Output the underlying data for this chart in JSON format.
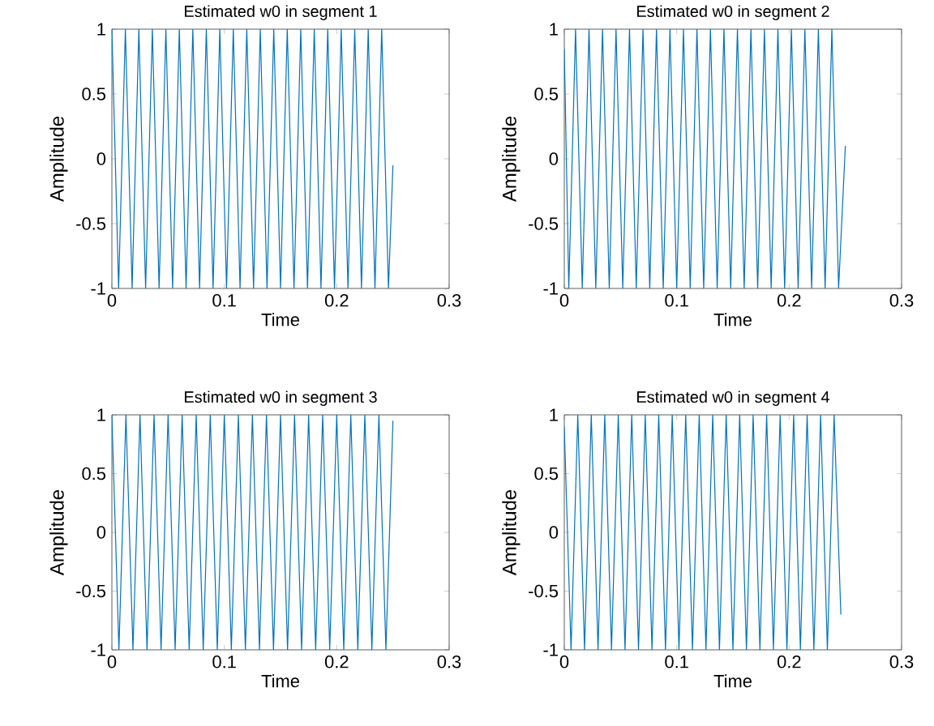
{
  "chart_data": [
    {
      "type": "line",
      "title": "Estimated w0 in segment 1",
      "xlabel": "Time",
      "ylabel": "Amplitude",
      "xlim": [
        0,
        0.3
      ],
      "ylim": [
        -1,
        1
      ],
      "xticks": [
        0,
        0.1,
        0.2,
        0.3
      ],
      "yticks": [
        -1,
        -0.5,
        0,
        0.5,
        1
      ],
      "grid": false,
      "marker": "none",
      "line_style": "solid",
      "series": [
        {
          "color": "#0072bd",
          "x": [
            0,
            0.006,
            0.012,
            0.018,
            0.024,
            0.03,
            0.036,
            0.042,
            0.048,
            0.054,
            0.06,
            0.066,
            0.072,
            0.078,
            0.084,
            0.09,
            0.096,
            0.102,
            0.108,
            0.114,
            0.12,
            0.126,
            0.132,
            0.138,
            0.144,
            0.15,
            0.156,
            0.162,
            0.168,
            0.174,
            0.18,
            0.186,
            0.192,
            0.198,
            0.204,
            0.21,
            0.216,
            0.222,
            0.228,
            0.234,
            0.24,
            0.246,
            0.25
          ],
          "values": [
            1,
            -1,
            1,
            -1,
            1,
            -1,
            1,
            -1,
            1,
            -1,
            1,
            -1,
            1,
            -1,
            1,
            -1,
            1,
            -1,
            1,
            -1,
            1,
            -1,
            1,
            -1,
            1,
            -1,
            1,
            -1,
            1,
            -1,
            1,
            -1,
            1,
            -1,
            1,
            -1,
            1,
            -1,
            1,
            -1,
            1,
            -1,
            -0.05
          ]
        }
      ]
    },
    {
      "type": "line",
      "title": "Estimated w0 in segment 2",
      "xlabel": "Time",
      "ylabel": "Amplitude",
      "xlim": [
        0,
        0.3
      ],
      "ylim": [
        -1,
        1
      ],
      "xticks": [
        0,
        0.1,
        0.2,
        0.3
      ],
      "yticks": [
        -1,
        -0.5,
        0,
        0.5,
        1
      ],
      "grid": false,
      "marker": "none",
      "line_style": "solid",
      "series": [
        {
          "color": "#0072bd",
          "x": [
            0,
            0.004,
            0.01,
            0.016,
            0.022,
            0.028,
            0.034,
            0.04,
            0.046,
            0.052,
            0.058,
            0.064,
            0.07,
            0.076,
            0.082,
            0.088,
            0.094,
            0.1,
            0.106,
            0.112,
            0.118,
            0.124,
            0.13,
            0.136,
            0.142,
            0.148,
            0.154,
            0.16,
            0.166,
            0.172,
            0.178,
            0.184,
            0.19,
            0.196,
            0.202,
            0.208,
            0.214,
            0.22,
            0.226,
            0.232,
            0.238,
            0.244,
            0.25
          ],
          "values": [
            0.85,
            -1,
            1,
            -1,
            1,
            -1,
            1,
            -1,
            1,
            -1,
            1,
            -1,
            1,
            -1,
            1,
            -1,
            1,
            -1,
            1,
            -1,
            1,
            -1,
            1,
            -1,
            1,
            -1,
            1,
            -1,
            1,
            -1,
            1,
            -1,
            1,
            -1,
            1,
            -1,
            1,
            -1,
            1,
            -1,
            1,
            -1,
            0.1
          ]
        }
      ]
    },
    {
      "type": "line",
      "title": "Estimated w0 in segment 3",
      "xlabel": "Time",
      "ylabel": "Amplitude",
      "xlim": [
        0,
        0.3
      ],
      "ylim": [
        -1,
        1
      ],
      "xticks": [
        0,
        0.1,
        0.2,
        0.3
      ],
      "yticks": [
        -1,
        -0.5,
        0,
        0.5,
        1
      ],
      "grid": false,
      "marker": "none",
      "line_style": "solid",
      "series": [
        {
          "color": "#0072bd",
          "x": [
            0,
            0.00625,
            0.0125,
            0.01875,
            0.025,
            0.03125,
            0.0375,
            0.04375,
            0.05,
            0.05625,
            0.0625,
            0.06875,
            0.075,
            0.08125,
            0.0875,
            0.09375,
            0.1,
            0.10625,
            0.1125,
            0.11875,
            0.125,
            0.13125,
            0.1375,
            0.14375,
            0.15,
            0.15625,
            0.1625,
            0.16875,
            0.175,
            0.18125,
            0.1875,
            0.19375,
            0.2,
            0.20625,
            0.2125,
            0.21875,
            0.225,
            0.23125,
            0.2375,
            0.24375,
            0.25
          ],
          "values": [
            1,
            -1,
            1,
            -1,
            1,
            -1,
            1,
            -1,
            1,
            -1,
            1,
            -1,
            1,
            -1,
            1,
            -1,
            1,
            -1,
            1,
            -1,
            1,
            -1,
            1,
            -1,
            1,
            -1,
            1,
            -1,
            1,
            -1,
            1,
            -1,
            1,
            -1,
            1,
            -1,
            1,
            -1,
            1,
            -1,
            0.95
          ]
        }
      ]
    },
    {
      "type": "line",
      "title": "Estimated w0 in segment 4",
      "xlabel": "Time",
      "ylabel": "Amplitude",
      "xlim": [
        0,
        0.3
      ],
      "ylim": [
        -1,
        1
      ],
      "xticks": [
        0,
        0.1,
        0.2,
        0.3
      ],
      "yticks": [
        -1,
        -0.5,
        0,
        0.5,
        1
      ],
      "grid": false,
      "marker": "none",
      "line_style": "solid",
      "series": [
        {
          "color": "#0072bd",
          "x": [
            0,
            0.006,
            0.012,
            0.018,
            0.024,
            0.03,
            0.036,
            0.042,
            0.048,
            0.054,
            0.06,
            0.066,
            0.072,
            0.078,
            0.084,
            0.09,
            0.096,
            0.102,
            0.108,
            0.114,
            0.12,
            0.126,
            0.132,
            0.138,
            0.144,
            0.15,
            0.156,
            0.162,
            0.168,
            0.174,
            0.18,
            0.186,
            0.192,
            0.198,
            0.204,
            0.21,
            0.216,
            0.222,
            0.228,
            0.234,
            0.24,
            0.246
          ],
          "values": [
            0.9,
            -1,
            1,
            -1,
            1,
            -1,
            1,
            -1,
            1,
            -1,
            1,
            -1,
            1,
            -1,
            1,
            -1,
            1,
            -1,
            1,
            -1,
            1,
            -1,
            1,
            -1,
            1,
            -1,
            1,
            -1,
            1,
            -1,
            1,
            -1,
            1,
            -1,
            1,
            -1,
            1,
            -1,
            1,
            -1,
            1,
            -0.7
          ]
        }
      ]
    }
  ]
}
